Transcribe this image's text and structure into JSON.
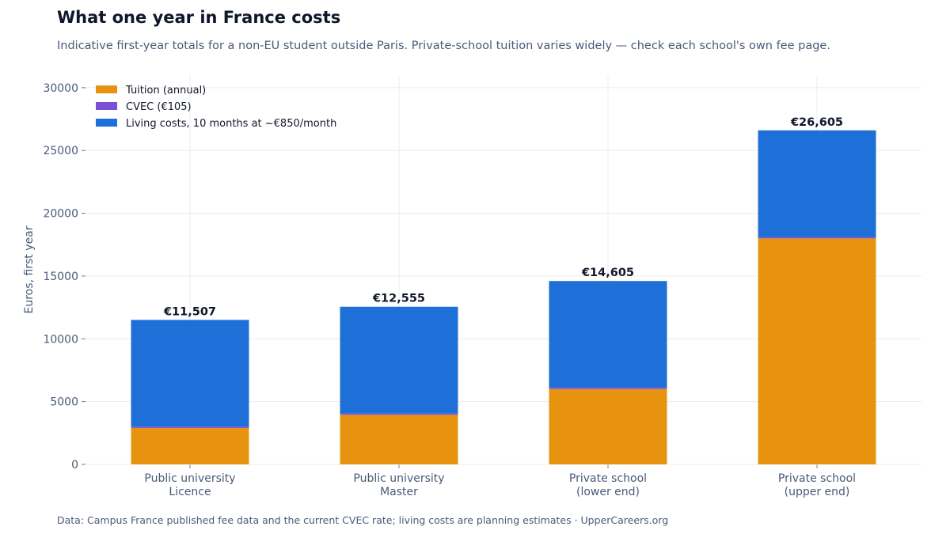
{
  "title": "What one year in France costs",
  "subtitle": "Indicative first-year totals for a non-EU student outside Paris. Private-school tuition varies widely — check each school's own fee page.",
  "footer": "Data: Campus France published fee data and the current CVEC rate; living costs are planning estimates  ·  UpperCareers.org",
  "chart_data": {
    "type": "bar",
    "stacked": true,
    "categories": [
      [
        "Public university",
        "Licence"
      ],
      [
        "Public university",
        "Master"
      ],
      [
        "Private school",
        "(lower end)"
      ],
      [
        "Private school",
        "(upper end)"
      ]
    ],
    "series": [
      {
        "name": "Tuition (annual)",
        "color": "#e8930f",
        "values": [
          2902,
          3950,
          6000,
          18000
        ]
      },
      {
        "name": "CVEC (€105)",
        "color": "#7b4fd6",
        "values": [
          105,
          105,
          105,
          105
        ]
      },
      {
        "name": "Living costs, 10 months at ~€850/month",
        "color": "#1f6fd8",
        "values": [
          8500,
          8500,
          8500,
          8500
        ]
      }
    ],
    "totals": [
      "€11,507",
      "€12,555",
      "€14,605",
      "€26,605"
    ],
    "xlabel": "",
    "ylabel": "Euros, first year",
    "ylim": [
      0,
      31000
    ],
    "yticks": [
      0,
      5000,
      10000,
      15000,
      20000,
      25000,
      30000
    ],
    "grid": true,
    "legend": "top-left"
  }
}
